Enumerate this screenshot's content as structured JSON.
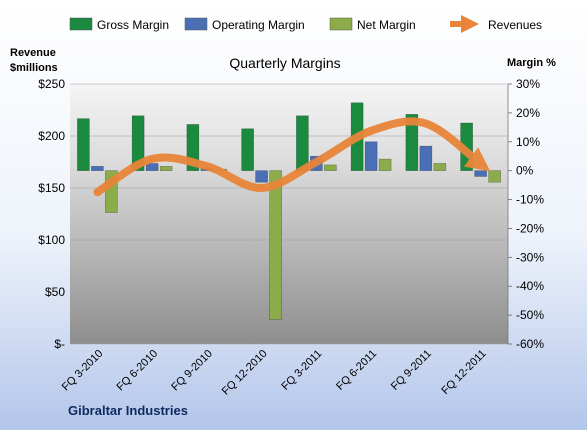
{
  "chart_data": {
    "type": "bar",
    "title": "Quarterly Margins",
    "company": "Gibraltar Industries",
    "left_axis": {
      "label_line1": "Revenue",
      "label_line2": "$millions",
      "range": [
        0,
        250
      ],
      "ticks": [
        0,
        50,
        100,
        150,
        200,
        250
      ],
      "tick_labels": [
        "$-",
        "$50",
        "$100",
        "$150",
        "$200",
        "$250"
      ]
    },
    "right_axis": {
      "label": "Margin %",
      "range": [
        -60,
        30
      ],
      "ticks": [
        -60,
        -50,
        -40,
        -30,
        -20,
        -10,
        0,
        10,
        20,
        30
      ],
      "tick_labels": [
        "-60%",
        "-50%",
        "-40%",
        "-30%",
        "-20%",
        "-10%",
        "0%",
        "10%",
        "20%",
        "30%"
      ]
    },
    "categories": [
      "FQ 3-2010",
      "FQ 6-2010",
      "FQ 9-2010",
      "FQ 12-2010",
      "FQ 3-2011",
      "FQ 6-2011",
      "FQ 9-2011",
      "FQ 12-2011"
    ],
    "series": [
      {
        "name": "Gross Margin",
        "kind": "bar",
        "axis": "right",
        "color": "#1a8a3e",
        "values": [
          18,
          19,
          16,
          14.5,
          19,
          23.5,
          19.5,
          16.5
        ]
      },
      {
        "name": "Operating Margin",
        "kind": "bar",
        "axis": "right",
        "color": "#4a6fb5",
        "values": [
          1.5,
          2.5,
          1,
          -4,
          5,
          10,
          8.5,
          -2
        ]
      },
      {
        "name": "Net Margin",
        "kind": "bar",
        "axis": "right",
        "color": "#8cab4a",
        "values": [
          -14.5,
          1.5,
          0.5,
          -51.5,
          2,
          4,
          2.5,
          -4
        ]
      },
      {
        "name": "Revenues",
        "kind": "line",
        "axis": "left",
        "color": "#e9853a",
        "values": [
          146,
          178,
          171,
          150,
          175,
          205,
          212,
          173
        ]
      }
    ],
    "legend_position": "top"
  }
}
